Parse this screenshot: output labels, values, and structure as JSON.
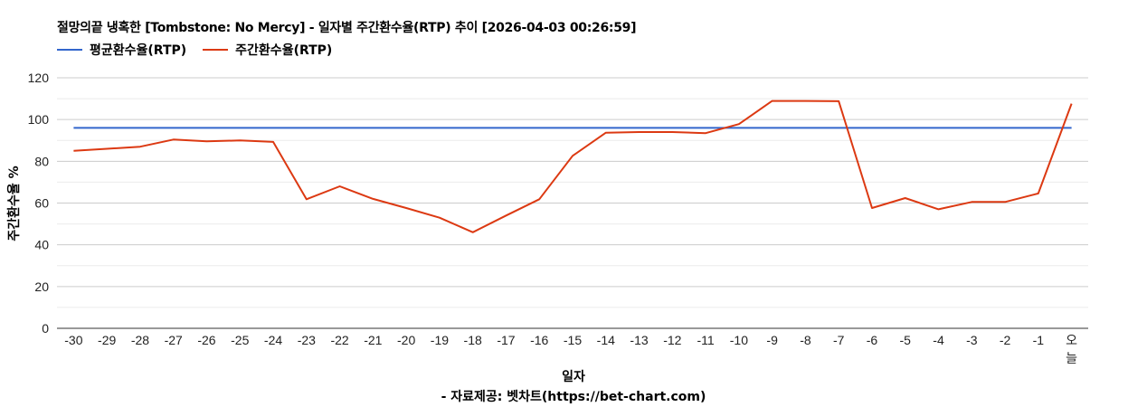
{
  "chart_data": {
    "type": "line",
    "title": "절망의끝 냉혹한 [Tombstone: No Mercy] - 일자별 주간환수율(RTP) 추이 [2026-04-03 00:26:59]",
    "xlabel": "일자",
    "ylabel": "주간환수율 %",
    "source": "- 자료제공: 벳차트(https://bet-chart.com)",
    "ylim": [
      0,
      120
    ],
    "yticks": [
      0,
      20,
      40,
      60,
      80,
      100,
      120
    ],
    "grid": true,
    "legend_position": "top-left",
    "categories": [
      "-30",
      "-29",
      "-28",
      "-27",
      "-26",
      "-25",
      "-24",
      "-23",
      "-22",
      "-21",
      "-20",
      "-19",
      "-18",
      "-17",
      "-16",
      "-15",
      "-14",
      "-13",
      "-12",
      "-11",
      "-10",
      "-9",
      "-8",
      "-7",
      "-6",
      "-5",
      "-4",
      "-3",
      "-2",
      "-1",
      "오늘"
    ],
    "series": [
      {
        "name": "평균환수율(RTP)",
        "color": "#3366cc",
        "values": [
          96,
          96,
          96,
          96,
          96,
          96,
          96,
          96,
          96,
          96,
          96,
          96,
          96,
          96,
          96,
          96,
          96,
          96,
          96,
          96,
          96,
          96,
          96,
          96,
          96,
          96,
          96,
          96,
          96,
          96,
          96
        ]
      },
      {
        "name": "주간환수율(RTP)",
        "color": "#dc3912",
        "values": [
          85,
          86,
          87,
          90.4,
          89.6,
          90,
          89.3,
          61.8,
          68,
          62,
          57.6,
          53,
          46,
          54,
          61.8,
          82.6,
          93.7,
          94,
          94,
          93.5,
          97.8,
          108.9,
          108.9,
          108.8,
          57.6,
          62.4,
          57,
          60.5,
          60.5,
          64.6,
          107.6
        ]
      }
    ]
  }
}
